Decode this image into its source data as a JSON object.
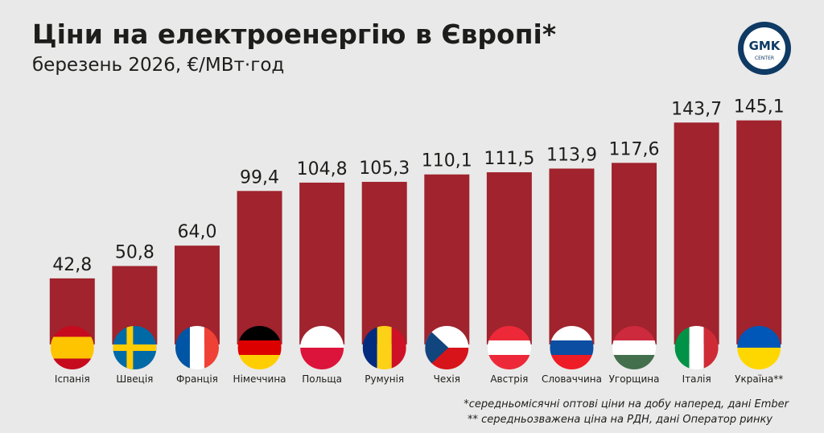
{
  "chart_data": {
    "type": "bar",
    "title": "Ціни на електроенергію в Європі*",
    "subtitle": "березень 2026, €/МВт·год",
    "logo": [
      "GMK",
      "CENTER"
    ],
    "categories": [
      "Іспанія",
      "Швеція",
      "Франція",
      "Німеччина",
      "Польща",
      "Румунія",
      "Чехія",
      "Австрія",
      "Словаччина",
      "Угорщина",
      "Італія",
      "Україна**"
    ],
    "values": [
      42.8,
      50.8,
      64.0,
      99.4,
      104.8,
      105.3,
      110.1,
      111.5,
      113.9,
      117.6,
      143.7,
      145.1
    ],
    "value_labels": [
      "42,8",
      "50,8",
      "64,0",
      "99,4",
      "104,8",
      "105,3",
      "110,1",
      "111,5",
      "113,9",
      "117,6",
      "143,7",
      "145,1"
    ],
    "color": "#a0232d",
    "ylim": [
      0,
      160
    ],
    "notes": [
      "*середньомісячні оптові ціни на добу наперед, дані Ember",
      "** середньозважена ціна на РДН, дані Оператор ринку"
    ]
  }
}
